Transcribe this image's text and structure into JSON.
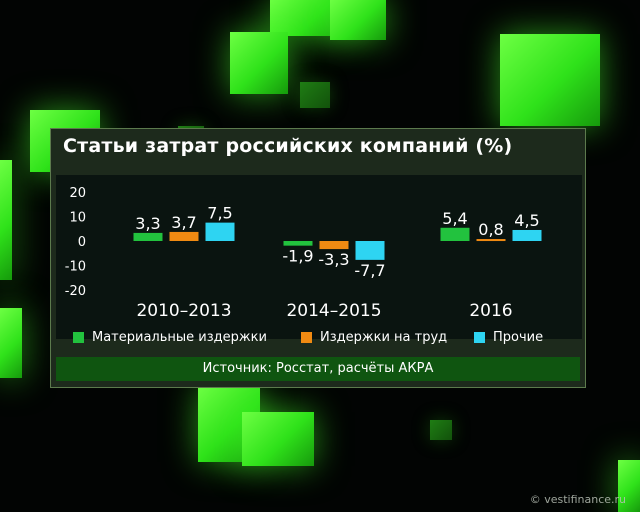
{
  "title": "Статьи затрат российских компаний (%)",
  "source": "Источник: Росстат, расчёты АКРА",
  "watermark": "© vestifinance.ru",
  "chart_data": {
    "type": "bar",
    "categories": [
      "2010–2013",
      "2014–2015",
      "2016"
    ],
    "series": [
      {
        "name": "Материальные издержки",
        "color": "#22c23e",
        "values": [
          3.3,
          -1.9,
          5.4
        ],
        "labels": [
          "3,3",
          "-1,9",
          "5,4"
        ]
      },
      {
        "name": "Издержки на труд",
        "color": "#f08a12",
        "values": [
          3.7,
          -3.3,
          0.8
        ],
        "labels": [
          "3,7",
          "-3,3",
          "0,8"
        ]
      },
      {
        "name": "Прочие",
        "color": "#2ed4f2",
        "values": [
          7.5,
          -7.7,
          4.5
        ],
        "labels": [
          "7,5",
          "-7,7",
          "4,5"
        ]
      }
    ],
    "yticks": [
      20,
      10,
      0,
      -10,
      -20
    ],
    "ylim": [
      -20,
      20
    ],
    "grid": false,
    "legend_position": "bottom"
  }
}
